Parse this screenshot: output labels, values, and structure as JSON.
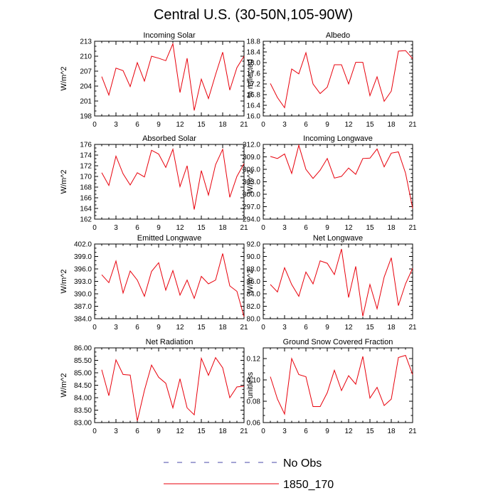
{
  "title": "Central U.S. (30-50N,105-90W)",
  "colors": {
    "series": "#e8000b",
    "obs": "#4a4aa8",
    "axis": "#000000"
  },
  "legend": [
    {
      "label": "No Obs",
      "style": "dashed",
      "color": "#4a4aa8"
    },
    {
      "label": "1850_170",
      "style": "solid",
      "color": "#e8000b"
    }
  ],
  "chart_data": [
    {
      "type": "line",
      "title": "Incoming Solar",
      "ylabel": "W/m^2",
      "xlabel": "",
      "xlim": [
        0,
        21
      ],
      "ylim": [
        198,
        213
      ],
      "xticks": [
        "0",
        "3",
        "6",
        "9",
        "12",
        "15",
        "18",
        "21"
      ],
      "yticks": [
        "198",
        "201",
        "204",
        "207",
        "210",
        "213"
      ],
      "x": [
        1,
        2,
        3,
        4,
        5,
        6,
        7,
        8,
        9,
        10,
        11,
        12,
        13,
        14,
        15,
        16,
        17,
        18,
        19,
        20,
        21
      ],
      "series": [
        {
          "values": [
            205.9,
            202.2,
            207.6,
            207.1,
            203.9,
            208.7,
            205.0,
            210.0,
            209.6,
            209.1,
            212.5,
            202.7,
            209.6,
            199.1,
            205.4,
            201.5,
            206.3,
            210.8,
            203.2,
            207.7,
            210.0
          ]
        }
      ]
    },
    {
      "type": "line",
      "title": "Albedo",
      "ylabel": "% reflected",
      "xlabel": "",
      "xlim": [
        0,
        21
      ],
      "ylim": [
        16.0,
        18.8
      ],
      "xticks": [
        "0",
        "3",
        "6",
        "9",
        "12",
        "15",
        "18",
        "21"
      ],
      "yticks": [
        "16.0",
        "16.4",
        "16.8",
        "17.2",
        "17.6",
        "18.0",
        "18.4",
        "18.8"
      ],
      "x": [
        1,
        2,
        3,
        4,
        5,
        6,
        7,
        8,
        9,
        10,
        11,
        12,
        13,
        14,
        15,
        16,
        17,
        18,
        19,
        20,
        21
      ],
      "series": [
        {
          "values": [
            17.22,
            16.69,
            16.31,
            17.76,
            17.58,
            18.37,
            17.2,
            16.84,
            17.08,
            17.92,
            17.92,
            17.2,
            18.01,
            18.01,
            16.76,
            17.47,
            16.55,
            16.93,
            18.43,
            18.45,
            18.15
          ]
        }
      ]
    },
    {
      "type": "line",
      "title": "Absorbed Solar",
      "ylabel": "W/m^2",
      "xlabel": "",
      "xlim": [
        0,
        21
      ],
      "ylim": [
        162,
        176
      ],
      "xticks": [
        "0",
        "3",
        "6",
        "9",
        "12",
        "15",
        "18",
        "21"
      ],
      "yticks": [
        "162",
        "164",
        "166",
        "168",
        "170",
        "172",
        "174",
        "176"
      ],
      "x": [
        1,
        2,
        3,
        4,
        5,
        6,
        7,
        8,
        9,
        10,
        11,
        12,
        13,
        14,
        15,
        16,
        17,
        18,
        19,
        20,
        21
      ],
      "series": [
        {
          "values": [
            170.7,
            168.3,
            173.8,
            170.5,
            168.4,
            170.7,
            169.9,
            174.9,
            174.2,
            171.7,
            175.1,
            168.1,
            172.0,
            163.8,
            171.1,
            166.5,
            172.2,
            175.1,
            166.1,
            170.0,
            172.4
          ]
        }
      ]
    },
    {
      "type": "line",
      "title": "Incoming Longwave",
      "ylabel": "W/m^2",
      "xlabel": "",
      "xlim": [
        0,
        21
      ],
      "ylim": [
        294.0,
        312.0
      ],
      "xticks": [
        "0",
        "3",
        "6",
        "9",
        "12",
        "15",
        "18",
        "21"
      ],
      "yticks": [
        "294.0",
        "297.0",
        "300.0",
        "303.0",
        "306.0",
        "309.0",
        "312.0"
      ],
      "x": [
        1,
        2,
        3,
        4,
        5,
        6,
        7,
        8,
        9,
        10,
        11,
        12,
        13,
        14,
        15,
        16,
        17,
        18,
        19,
        20,
        21
      ],
      "series": [
        {
          "values": [
            309.1,
            308.6,
            309.7,
            305.0,
            311.8,
            306.0,
            303.8,
            305.8,
            308.6,
            303.9,
            304.3,
            306.3,
            304.8,
            308.6,
            308.7,
            310.9,
            306.6,
            309.9,
            310.2,
            305.1,
            296.6
          ]
        }
      ]
    },
    {
      "type": "line",
      "title": "Emitted Longwave",
      "ylabel": "W/m^2",
      "xlabel": "",
      "xlim": [
        0,
        21
      ],
      "ylim": [
        384.0,
        402.0
      ],
      "xticks": [
        "0",
        "3",
        "6",
        "9",
        "12",
        "15",
        "18",
        "21"
      ],
      "yticks": [
        "384.0",
        "387.0",
        "390.0",
        "393.0",
        "396.0",
        "399.0",
        "402.0"
      ],
      "x": [
        1,
        2,
        3,
        4,
        5,
        6,
        7,
        8,
        9,
        10,
        11,
        12,
        13,
        14,
        15,
        16,
        17,
        18,
        19,
        20,
        21
      ],
      "series": [
        {
          "values": [
            394.6,
            392.7,
            397.9,
            390.2,
            395.5,
            393.3,
            389.4,
            395.4,
            397.5,
            390.9,
            395.6,
            389.7,
            393.3,
            388.9,
            394.2,
            392.4,
            393.3,
            399.7,
            391.9,
            390.6,
            384.5
          ]
        }
      ]
    },
    {
      "type": "line",
      "title": "Net Longwave",
      "ylabel": "W/m^2",
      "xlabel": "",
      "xlim": [
        0,
        21
      ],
      "ylim": [
        80.0,
        92.0
      ],
      "xticks": [
        "0",
        "3",
        "6",
        "9",
        "12",
        "15",
        "18",
        "21"
      ],
      "yticks": [
        "80.0",
        "82.0",
        "84.0",
        "86.0",
        "88.0",
        "90.0",
        "92.0"
      ],
      "x": [
        1,
        2,
        3,
        4,
        5,
        6,
        7,
        8,
        9,
        10,
        11,
        12,
        13,
        14,
        15,
        16,
        17,
        18,
        19,
        20,
        21
      ],
      "series": [
        {
          "values": [
            85.5,
            84.3,
            88.2,
            85.5,
            83.6,
            87.5,
            85.6,
            89.3,
            88.9,
            87.1,
            91.2,
            83.4,
            88.4,
            80.4,
            85.5,
            81.6,
            86.7,
            89.8,
            82.1,
            85.6,
            88.1
          ]
        }
      ]
    },
    {
      "type": "line",
      "title": "Net Radiation",
      "ylabel": "W/m^2",
      "xlabel": "",
      "xlim": [
        0,
        21
      ],
      "ylim": [
        83.0,
        86.0
      ],
      "xticks": [
        "0",
        "3",
        "6",
        "9",
        "12",
        "15",
        "18",
        "21"
      ],
      "yticks": [
        "83.00",
        "83.50",
        "84.00",
        "84.50",
        "85.00",
        "85.50",
        "86.00"
      ],
      "x": [
        1,
        2,
        3,
        4,
        5,
        6,
        7,
        8,
        9,
        10,
        11,
        12,
        13,
        14,
        15,
        16,
        17,
        18,
        19,
        20,
        21
      ],
      "series": [
        {
          "values": [
            85.12,
            84.08,
            85.52,
            84.93,
            84.91,
            83.07,
            84.29,
            85.31,
            84.82,
            84.58,
            83.59,
            84.76,
            83.59,
            83.31,
            85.58,
            84.9,
            85.61,
            85.2,
            84.0,
            84.43,
            84.46
          ]
        }
      ]
    },
    {
      "type": "line",
      "title": "Ground Snow Covered Fraction",
      "ylabel": "unitless",
      "xlabel": "",
      "xlim": [
        0,
        21
      ],
      "ylim": [
        0.06,
        0.13
      ],
      "xticks": [
        "0",
        "3",
        "6",
        "9",
        "12",
        "15",
        "18",
        "21"
      ],
      "yticks": [
        "0.06",
        "0.08",
        "0.10",
        "0.12"
      ],
      "x": [
        1,
        2,
        3,
        4,
        5,
        6,
        7,
        8,
        9,
        10,
        11,
        12,
        13,
        14,
        15,
        16,
        17,
        18,
        19,
        20,
        21
      ],
      "series": [
        {
          "values": [
            0.103,
            0.082,
            0.068,
            0.12,
            0.105,
            0.103,
            0.075,
            0.075,
            0.088,
            0.109,
            0.09,
            0.104,
            0.096,
            0.122,
            0.083,
            0.093,
            0.076,
            0.082,
            0.121,
            0.123,
            0.105
          ]
        }
      ]
    }
  ]
}
